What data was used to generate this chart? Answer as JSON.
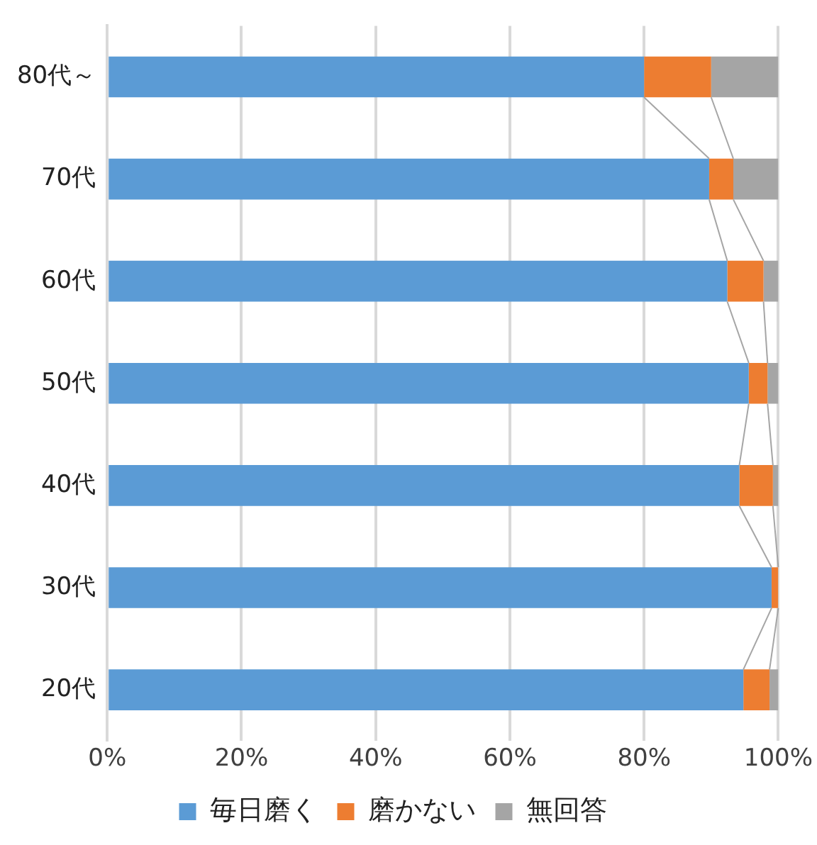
{
  "chart_data": {
    "type": "bar",
    "orientation": "horizontal",
    "stacked": true,
    "categories": [
      "80代～",
      "70代",
      "60代",
      "50代",
      "40代",
      "30代",
      "20代"
    ],
    "series": [
      {
        "name": "毎日磨く",
        "color": "#5b9bd5",
        "values": [
          80,
          89.7,
          92.4,
          95.6,
          94.2,
          99,
          94.8
        ]
      },
      {
        "name": "磨かない",
        "color": "#ed7d31",
        "values": [
          10,
          3.6,
          5.4,
          2.8,
          5,
          1,
          3.9
        ]
      },
      {
        "name": "無回答",
        "color": "#a5a5a5",
        "values": [
          10,
          6.7,
          2.2,
          1.6,
          0.8,
          0,
          1.3
        ]
      }
    ],
    "xlim": [
      0,
      100
    ],
    "xticks": [
      {
        "value": 0,
        "label": "0%"
      },
      {
        "value": 20,
        "label": "20%"
      },
      {
        "value": 40,
        "label": "40%"
      },
      {
        "value": 60,
        "label": "60%"
      },
      {
        "value": 80,
        "label": "80%"
      },
      {
        "value": 100,
        "label": "100%"
      }
    ],
    "grid": "x",
    "legend": "bottom"
  }
}
